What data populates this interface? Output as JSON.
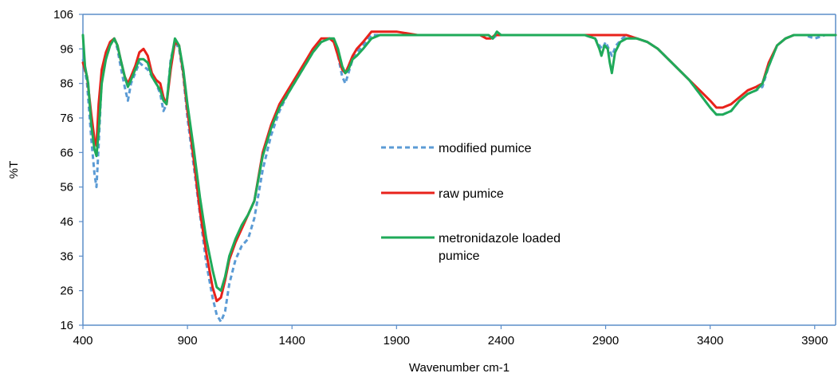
{
  "chart_data": {
    "type": "line",
    "title": "",
    "xlabel": "Wavenumber cm-1",
    "ylabel": "%T",
    "xlim": [
      400,
      4000
    ],
    "ylim": [
      16,
      106
    ],
    "x_ticks": [
      400,
      900,
      1400,
      1900,
      2400,
      2900,
      3400,
      3900
    ],
    "y_ticks": [
      16,
      26,
      36,
      46,
      56,
      66,
      76,
      86,
      96,
      106
    ],
    "grid": false,
    "legend_position": "center",
    "series": [
      {
        "name": "modified pumice",
        "color": "#5B9BD5",
        "dash": "dashed",
        "points": [
          [
            400,
            93
          ],
          [
            420,
            86
          ],
          [
            440,
            70
          ],
          [
            455,
            60
          ],
          [
            465,
            56
          ],
          [
            475,
            68
          ],
          [
            490,
            87
          ],
          [
            510,
            93
          ],
          [
            530,
            97
          ],
          [
            550,
            99
          ],
          [
            565,
            96
          ],
          [
            580,
            91
          ],
          [
            600,
            85
          ],
          [
            615,
            81
          ],
          [
            630,
            86
          ],
          [
            650,
            89
          ],
          [
            670,
            92
          ],
          [
            690,
            91
          ],
          [
            710,
            90
          ],
          [
            730,
            88
          ],
          [
            750,
            86
          ],
          [
            770,
            83
          ],
          [
            785,
            78
          ],
          [
            800,
            80
          ],
          [
            820,
            93
          ],
          [
            840,
            98
          ],
          [
            860,
            96
          ],
          [
            880,
            88
          ],
          [
            900,
            76
          ],
          [
            930,
            62
          ],
          [
            960,
            48
          ],
          [
            990,
            34
          ],
          [
            1020,
            24
          ],
          [
            1040,
            19
          ],
          [
            1060,
            17
          ],
          [
            1080,
            20
          ],
          [
            1100,
            28
          ],
          [
            1130,
            35
          ],
          [
            1160,
            39
          ],
          [
            1190,
            41
          ],
          [
            1220,
            47
          ],
          [
            1260,
            61
          ],
          [
            1300,
            71
          ],
          [
            1340,
            78
          ],
          [
            1380,
            83
          ],
          [
            1420,
            87
          ],
          [
            1460,
            91
          ],
          [
            1500,
            95
          ],
          [
            1540,
            98
          ],
          [
            1580,
            99
          ],
          [
            1600,
            98
          ],
          [
            1620,
            94
          ],
          [
            1640,
            88
          ],
          [
            1655,
            86
          ],
          [
            1670,
            89
          ],
          [
            1690,
            93
          ],
          [
            1710,
            95
          ],
          [
            1740,
            97
          ],
          [
            1780,
            100
          ],
          [
            1820,
            100
          ],
          [
            1860,
            100
          ],
          [
            1900,
            100
          ],
          [
            2000,
            100
          ],
          [
            2100,
            100
          ],
          [
            2200,
            100
          ],
          [
            2300,
            100
          ],
          [
            2340,
            100
          ],
          [
            2360,
            99
          ],
          [
            2380,
            100
          ],
          [
            2400,
            100
          ],
          [
            2500,
            100
          ],
          [
            2600,
            100
          ],
          [
            2700,
            100
          ],
          [
            2800,
            100
          ],
          [
            2850,
            99
          ],
          [
            2870,
            97
          ],
          [
            2885,
            96
          ],
          [
            2900,
            98
          ],
          [
            2915,
            96
          ],
          [
            2930,
            94
          ],
          [
            2950,
            97
          ],
          [
            2980,
            99
          ],
          [
            3000,
            100
          ],
          [
            3050,
            99
          ],
          [
            3100,
            98
          ],
          [
            3150,
            96
          ],
          [
            3200,
            93
          ],
          [
            3250,
            90
          ],
          [
            3300,
            87
          ],
          [
            3350,
            83
          ],
          [
            3400,
            79
          ],
          [
            3430,
            77
          ],
          [
            3460,
            77
          ],
          [
            3500,
            78
          ],
          [
            3540,
            81
          ],
          [
            3580,
            83
          ],
          [
            3620,
            84
          ],
          [
            3650,
            85
          ],
          [
            3680,
            91
          ],
          [
            3720,
            97
          ],
          [
            3760,
            99
          ],
          [
            3800,
            100
          ],
          [
            3850,
            100
          ],
          [
            3900,
            99
          ],
          [
            3950,
            100
          ],
          [
            4000,
            100
          ]
        ]
      },
      {
        "name": "raw pumice",
        "color": "#E8221B",
        "dash": "solid",
        "points": [
          [
            400,
            92
          ],
          [
            420,
            88
          ],
          [
            440,
            77
          ],
          [
            455,
            70
          ],
          [
            465,
            68
          ],
          [
            475,
            80
          ],
          [
            490,
            90
          ],
          [
            510,
            95
          ],
          [
            530,
            98
          ],
          [
            550,
            99
          ],
          [
            565,
            97
          ],
          [
            580,
            93
          ],
          [
            600,
            88
          ],
          [
            615,
            86
          ],
          [
            630,
            88
          ],
          [
            650,
            91
          ],
          [
            670,
            95
          ],
          [
            690,
            96
          ],
          [
            710,
            94
          ],
          [
            730,
            89
          ],
          [
            750,
            87
          ],
          [
            770,
            86
          ],
          [
            785,
            82
          ],
          [
            800,
            80
          ],
          [
            820,
            90
          ],
          [
            840,
            98
          ],
          [
            860,
            97
          ],
          [
            880,
            89
          ],
          [
            900,
            78
          ],
          [
            930,
            64
          ],
          [
            960,
            49
          ],
          [
            990,
            37
          ],
          [
            1020,
            27
          ],
          [
            1040,
            23
          ],
          [
            1060,
            24
          ],
          [
            1080,
            29
          ],
          [
            1100,
            35
          ],
          [
            1130,
            40
          ],
          [
            1160,
            44
          ],
          [
            1190,
            48
          ],
          [
            1220,
            52
          ],
          [
            1260,
            66
          ],
          [
            1300,
            74
          ],
          [
            1340,
            80
          ],
          [
            1380,
            84
          ],
          [
            1420,
            88
          ],
          [
            1460,
            92
          ],
          [
            1500,
            96
          ],
          [
            1540,
            99
          ],
          [
            1580,
            99
          ],
          [
            1600,
            98
          ],
          [
            1620,
            94
          ],
          [
            1640,
            90
          ],
          [
            1655,
            89
          ],
          [
            1670,
            91
          ],
          [
            1690,
            94
          ],
          [
            1710,
            96
          ],
          [
            1740,
            98
          ],
          [
            1780,
            101
          ],
          [
            1820,
            101
          ],
          [
            1860,
            101
          ],
          [
            1900,
            101
          ],
          [
            2000,
            100
          ],
          [
            2100,
            100
          ],
          [
            2200,
            100
          ],
          [
            2300,
            100
          ],
          [
            2330,
            99
          ],
          [
            2350,
            99
          ],
          [
            2370,
            100
          ],
          [
            2400,
            100
          ],
          [
            2500,
            100
          ],
          [
            2600,
            100
          ],
          [
            2700,
            100
          ],
          [
            2800,
            100
          ],
          [
            2900,
            100
          ],
          [
            3000,
            100
          ],
          [
            3050,
            99
          ],
          [
            3100,
            98
          ],
          [
            3150,
            96
          ],
          [
            3200,
            93
          ],
          [
            3250,
            90
          ],
          [
            3300,
            87
          ],
          [
            3350,
            84
          ],
          [
            3400,
            81
          ],
          [
            3430,
            79
          ],
          [
            3460,
            79
          ],
          [
            3500,
            80
          ],
          [
            3540,
            82
          ],
          [
            3580,
            84
          ],
          [
            3620,
            85
          ],
          [
            3650,
            86
          ],
          [
            3680,
            92
          ],
          [
            3720,
            97
          ],
          [
            3760,
            99
          ],
          [
            3800,
            100
          ],
          [
            3850,
            100
          ],
          [
            3900,
            100
          ],
          [
            3950,
            100
          ],
          [
            4000,
            100
          ]
        ]
      },
      {
        "name": "metronidazole loaded pumice",
        "color": "#1FAA59",
        "dash": "solid",
        "points": [
          [
            400,
            100
          ],
          [
            410,
            91
          ],
          [
            425,
            86
          ],
          [
            440,
            74
          ],
          [
            455,
            67
          ],
          [
            465,
            65
          ],
          [
            475,
            72
          ],
          [
            490,
            86
          ],
          [
            510,
            93
          ],
          [
            530,
            97
          ],
          [
            550,
            99
          ],
          [
            565,
            97
          ],
          [
            580,
            93
          ],
          [
            600,
            88
          ],
          [
            615,
            85
          ],
          [
            630,
            87
          ],
          [
            650,
            90
          ],
          [
            670,
            93
          ],
          [
            690,
            93
          ],
          [
            710,
            92
          ],
          [
            730,
            88
          ],
          [
            750,
            86
          ],
          [
            770,
            84
          ],
          [
            785,
            81
          ],
          [
            800,
            80
          ],
          [
            820,
            92
          ],
          [
            840,
            99
          ],
          [
            860,
            97
          ],
          [
            880,
            90
          ],
          [
            900,
            80
          ],
          [
            930,
            67
          ],
          [
            960,
            53
          ],
          [
            990,
            41
          ],
          [
            1020,
            32
          ],
          [
            1040,
            27
          ],
          [
            1060,
            26
          ],
          [
            1080,
            30
          ],
          [
            1100,
            36
          ],
          [
            1130,
            41
          ],
          [
            1160,
            45
          ],
          [
            1190,
            48
          ],
          [
            1220,
            52
          ],
          [
            1260,
            65
          ],
          [
            1300,
            73
          ],
          [
            1340,
            79
          ],
          [
            1380,
            83
          ],
          [
            1420,
            87
          ],
          [
            1460,
            91
          ],
          [
            1500,
            95
          ],
          [
            1540,
            98
          ],
          [
            1580,
            99
          ],
          [
            1600,
            99
          ],
          [
            1620,
            96
          ],
          [
            1640,
            91
          ],
          [
            1655,
            89
          ],
          [
            1670,
            90
          ],
          [
            1690,
            93
          ],
          [
            1710,
            94
          ],
          [
            1740,
            96
          ],
          [
            1780,
            99
          ],
          [
            1820,
            100
          ],
          [
            1860,
            100
          ],
          [
            1900,
            100
          ],
          [
            2000,
            100
          ],
          [
            2100,
            100
          ],
          [
            2200,
            100
          ],
          [
            2300,
            100
          ],
          [
            2340,
            100
          ],
          [
            2360,
            99
          ],
          [
            2380,
            101
          ],
          [
            2400,
            100
          ],
          [
            2500,
            100
          ],
          [
            2600,
            100
          ],
          [
            2700,
            100
          ],
          [
            2800,
            100
          ],
          [
            2850,
            99
          ],
          [
            2870,
            96
          ],
          [
            2880,
            94
          ],
          [
            2895,
            97
          ],
          [
            2910,
            96
          ],
          [
            2920,
            92
          ],
          [
            2930,
            89
          ],
          [
            2945,
            95
          ],
          [
            2970,
            98
          ],
          [
            3000,
            99
          ],
          [
            3050,
            99
          ],
          [
            3100,
            98
          ],
          [
            3150,
            96
          ],
          [
            3200,
            93
          ],
          [
            3250,
            90
          ],
          [
            3300,
            87
          ],
          [
            3350,
            83
          ],
          [
            3400,
            79
          ],
          [
            3430,
            77
          ],
          [
            3460,
            77
          ],
          [
            3500,
            78
          ],
          [
            3540,
            81
          ],
          [
            3580,
            83
          ],
          [
            3620,
            84
          ],
          [
            3650,
            86
          ],
          [
            3680,
            91
          ],
          [
            3720,
            97
          ],
          [
            3760,
            99
          ],
          [
            3800,
            100
          ],
          [
            3850,
            100
          ],
          [
            3900,
            100
          ],
          [
            3950,
            100
          ],
          [
            4000,
            100
          ]
        ]
      }
    ]
  }
}
